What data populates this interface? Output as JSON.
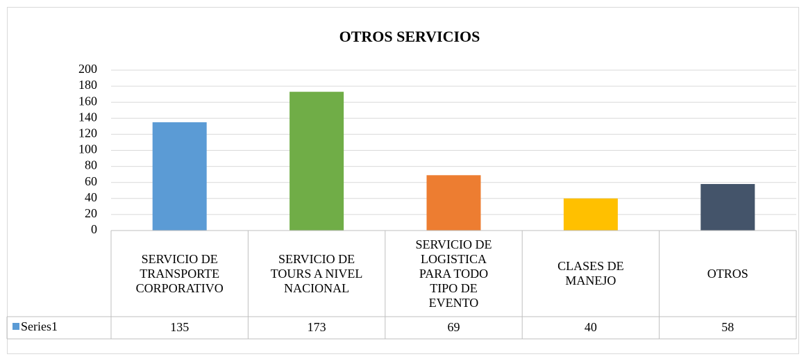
{
  "chart_data": {
    "type": "bar",
    "title": "OTROS SERVICIOS",
    "categories": [
      "SERVICIO DE TRANSPORTE CORPORATIVO",
      "SERVICIO DE TOURS A NIVEL NACIONAL",
      "SERVICIO DE LOGISTICA PARA TODO TIPO DE EVENTO",
      "CLASES DE MANEJO",
      "OTROS"
    ],
    "series": [
      {
        "name": "Series1",
        "color": "#5b9bd5",
        "colors": [
          "#5b9bd5",
          "#70ad47",
          "#ed7d31",
          "#ffc000",
          "#44546a"
        ],
        "values": [
          135,
          173,
          69,
          40,
          58
        ]
      }
    ],
    "ylim": [
      0,
      200
    ],
    "yticks": [
      0,
      20,
      40,
      60,
      80,
      100,
      120,
      140,
      160,
      180,
      200
    ],
    "grid": true,
    "data_table": true
  }
}
